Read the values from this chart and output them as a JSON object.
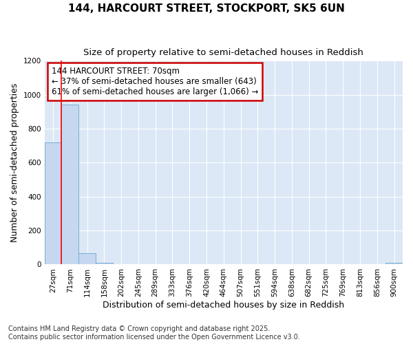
{
  "title1": "144, HARCOURT STREET, STOCKPORT, SK5 6UN",
  "title2": "Size of property relative to semi-detached houses in Reddish",
  "xlabel": "Distribution of semi-detached houses by size in Reddish",
  "ylabel": "Number of semi-detached properties",
  "bins": [
    "27sqm",
    "71sqm",
    "114sqm",
    "158sqm",
    "202sqm",
    "245sqm",
    "289sqm",
    "333sqm",
    "376sqm",
    "420sqm",
    "464sqm",
    "507sqm",
    "551sqm",
    "594sqm",
    "638sqm",
    "682sqm",
    "725sqm",
    "769sqm",
    "813sqm",
    "856sqm",
    "900sqm"
  ],
  "values": [
    720,
    940,
    65,
    10,
    0,
    0,
    0,
    0,
    0,
    0,
    0,
    0,
    0,
    0,
    0,
    0,
    0,
    0,
    0,
    0,
    10
  ],
  "bar_color": "#c5d8f0",
  "bar_edge_color": "#7aadd4",
  "red_line_x": 0.5,
  "ylim": [
    0,
    1200
  ],
  "yticks": [
    0,
    200,
    400,
    600,
    800,
    1000,
    1200
  ],
  "annotation_title": "144 HARCOURT STREET: 70sqm",
  "annotation_line1": "← 37% of semi-detached houses are smaller (643)",
  "annotation_line2": "61% of semi-detached houses are larger (1,066) →",
  "annotation_box_color": "#ffffff",
  "annotation_box_edge": "#cc0000",
  "fig_bg_color": "#ffffff",
  "plot_bg_color": "#dce8f5",
  "grid_color": "#ffffff",
  "footer1": "Contains HM Land Registry data © Crown copyright and database right 2025.",
  "footer2": "Contains public sector information licensed under the Open Government Licence v3.0.",
  "title_fontsize": 11,
  "subtitle_fontsize": 9.5,
  "axis_label_fontsize": 9,
  "tick_fontsize": 7.5,
  "annotation_fontsize": 8.5,
  "footer_fontsize": 7
}
